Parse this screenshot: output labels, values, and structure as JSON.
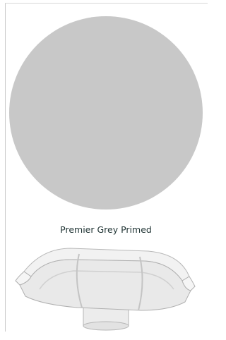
{
  "swatch": {
    "label": "Premier Grey Primed"
  }
}
